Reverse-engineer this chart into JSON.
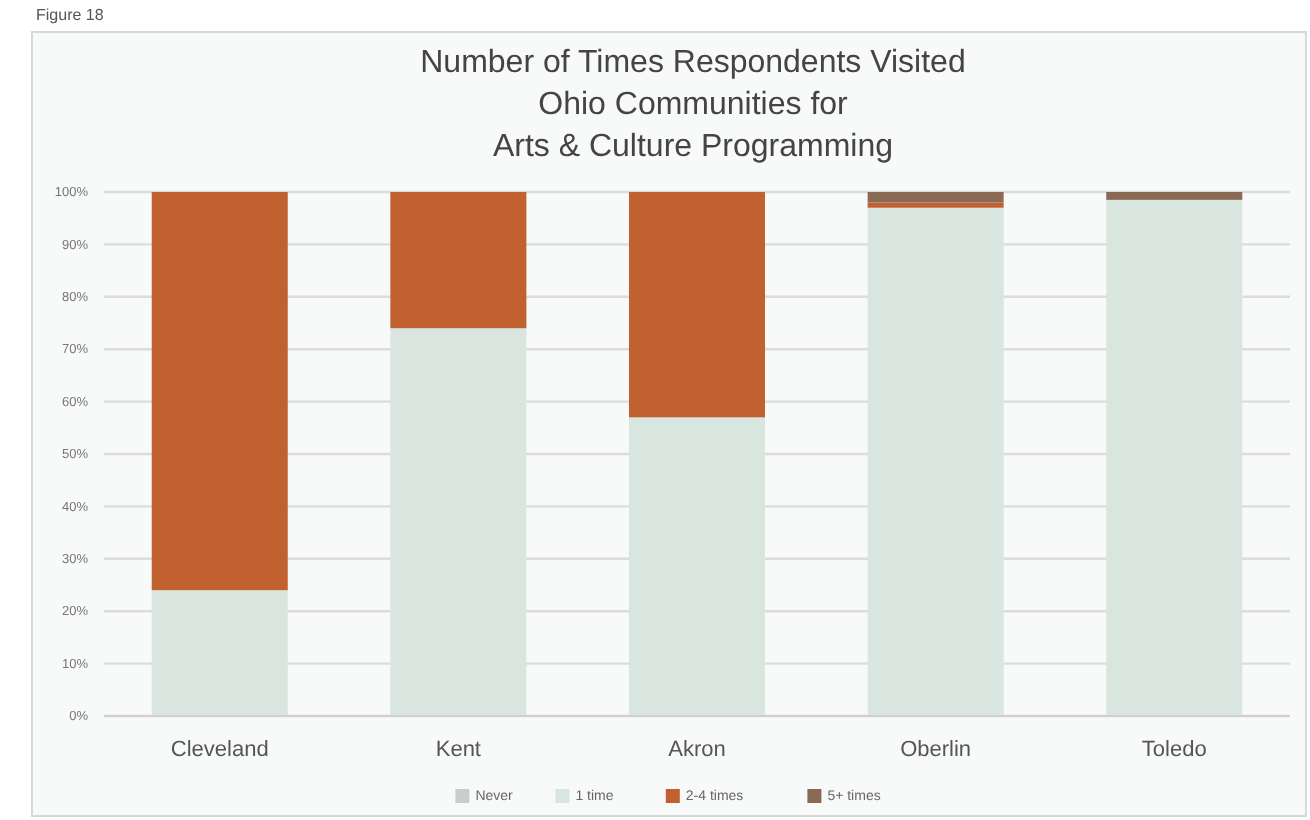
{
  "chart_data": {
    "type": "bar",
    "title": "Number of Times Respondents Visited\nOhio Communities for\nArts & Culture Programming",
    "annotations": [
      "Figure 18"
    ],
    "categories": [
      "Cleveland",
      "Kent",
      "Akron",
      "Oberlin",
      "Toledo"
    ],
    "stacked": true,
    "series": [
      {
        "name": "Never",
        "color": "#c8cfcb",
        "values": [
          0,
          0,
          0,
          0,
          0
        ]
      },
      {
        "name": "1 time",
        "color": "#d9e6df",
        "values": [
          24,
          74,
          57,
          97,
          98.5
        ]
      },
      {
        "name": "2-4 times",
        "color": "#c0612f",
        "values": [
          76,
          26,
          43,
          1,
          0
        ]
      },
      {
        "name": "5+ times",
        "color": "#8a6a55",
        "values": [
          0,
          0,
          0,
          2,
          1.5
        ]
      }
    ],
    "ylim": [
      0,
      100
    ],
    "yticks": [
      {
        "value": 0,
        "label": "0%"
      },
      {
        "value": 10,
        "label": "10%"
      },
      {
        "value": 20,
        "label": "20%"
      },
      {
        "value": 30,
        "label": "30%"
      },
      {
        "value": 40,
        "label": "40%"
      },
      {
        "value": 50,
        "label": "50%"
      },
      {
        "value": 60,
        "label": "60%"
      },
      {
        "value": 70,
        "label": "70%"
      },
      {
        "value": 80,
        "label": "80%"
      },
      {
        "value": 90,
        "label": "90%"
      },
      {
        "value": 100,
        "label": "100%"
      }
    ],
    "grid": "y",
    "legend": "bottom"
  }
}
